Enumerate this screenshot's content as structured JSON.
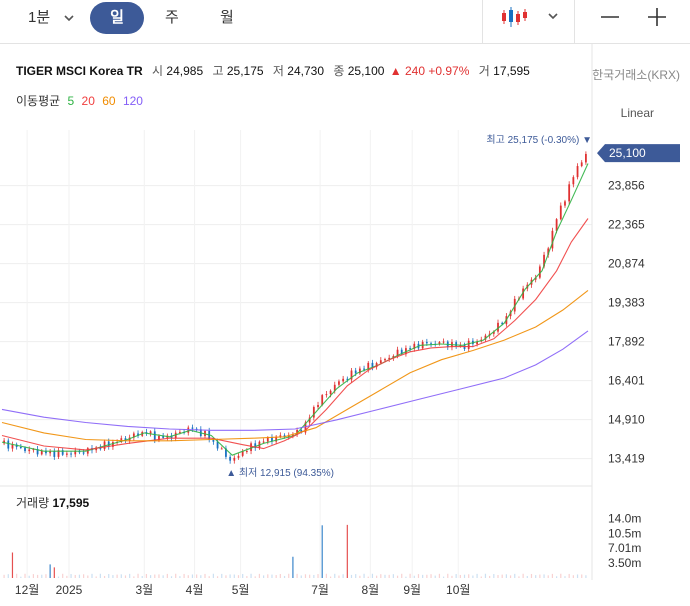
{
  "toolbar": {
    "period_label": "1분",
    "tabs": [
      "일",
      "주",
      "월"
    ],
    "active_tab": 0
  },
  "info": {
    "name": "TIGER MSCI Korea TR",
    "open_label": "시",
    "open": "24,985",
    "high_label": "고",
    "high": "25,175",
    "low_label": "저",
    "low": "24,730",
    "close_label": "종",
    "close": "25,100",
    "change": "▲ 240",
    "change_pct": "+0.97%",
    "volume_label": "거",
    "volume": "17,595",
    "exchange": "한국거래소(KRX)"
  },
  "ma_legend": {
    "title": "이동평균",
    "items": [
      {
        "label": "5",
        "color": "#2fb344"
      },
      {
        "label": "20",
        "color": "#f03e3e"
      },
      {
        "label": "60",
        "color": "#f08c00"
      },
      {
        "label": "120",
        "color": "#845ef7"
      }
    ]
  },
  "scale_mode": "Linear",
  "volume_panel": {
    "title": "거래량",
    "value": "17,595"
  },
  "colors": {
    "up": "#e03131",
    "down": "#1971c2",
    "accent": "#3d5a98"
  },
  "chart_data": {
    "type": "candlestick",
    "title": "TIGER MSCI Korea TR",
    "y_ticks": [
      "13,419",
      "14,910",
      "16,401",
      "17,892",
      "19,383",
      "20,874",
      "22,365",
      "23,856"
    ],
    "y_range": [
      12600,
      25600
    ],
    "current_price": "25,100",
    "max_annotation": "최고 25,175 (-0.30%) ▼",
    "min_annotation": "▲ 최저 12,915 (94.35%)",
    "x_ticks": [
      "12월",
      "2025",
      "3월",
      "4월",
      "5월",
      "7월",
      "8월",
      "9월",
      "10월"
    ],
    "volume_ticks": [
      "14.0m",
      "10.5m",
      "7.01m",
      "3.50m"
    ],
    "volume_range": [
      0,
      16000000
    ],
    "series": [
      {
        "name": "price_close_approx",
        "points": [
          [
            0,
            14000
          ],
          [
            5,
            13900
          ],
          [
            12,
            13750
          ],
          [
            20,
            13650
          ],
          [
            30,
            13600
          ],
          [
            40,
            13700
          ],
          [
            50,
            13950
          ],
          [
            60,
            14200
          ],
          [
            68,
            14450
          ],
          [
            75,
            14200
          ],
          [
            82,
            14300
          ],
          [
            90,
            14600
          ],
          [
            98,
            14300
          ],
          [
            105,
            13700
          ],
          [
            110,
            13300
          ],
          [
            115,
            13700
          ],
          [
            125,
            14100
          ],
          [
            135,
            14300
          ],
          [
            140,
            14350
          ],
          [
            145,
            14700
          ],
          [
            150,
            15500
          ],
          [
            160,
            16300
          ],
          [
            170,
            16800
          ],
          [
            180,
            17100
          ],
          [
            190,
            17500
          ],
          [
            200,
            17800
          ],
          [
            210,
            17850
          ],
          [
            220,
            17700
          ],
          [
            230,
            18000
          ],
          [
            240,
            18700
          ],
          [
            248,
            19800
          ],
          [
            255,
            20400
          ],
          [
            260,
            21300
          ],
          [
            265,
            22600
          ],
          [
            270,
            23600
          ],
          [
            275,
            24600
          ],
          [
            280,
            25100
          ]
        ]
      },
      {
        "name": "MA5",
        "points": [
          [
            0,
            14050
          ],
          [
            20,
            13700
          ],
          [
            40,
            13700
          ],
          [
            60,
            14150
          ],
          [
            68,
            14400
          ],
          [
            80,
            14250
          ],
          [
            90,
            14500
          ],
          [
            100,
            14300
          ],
          [
            110,
            13550
          ],
          [
            125,
            14000
          ],
          [
            140,
            14300
          ],
          [
            150,
            15200
          ],
          [
            160,
            16100
          ],
          [
            170,
            16700
          ],
          [
            180,
            17000
          ],
          [
            190,
            17400
          ],
          [
            200,
            17750
          ],
          [
            210,
            17800
          ],
          [
            220,
            17750
          ],
          [
            230,
            17950
          ],
          [
            240,
            18600
          ],
          [
            250,
            19900
          ],
          [
            258,
            20600
          ],
          [
            265,
            22100
          ],
          [
            272,
            23300
          ],
          [
            280,
            24700
          ]
        ]
      },
      {
        "name": "MA20",
        "points": [
          [
            0,
            14300
          ],
          [
            20,
            13900
          ],
          [
            40,
            13750
          ],
          [
            60,
            14000
          ],
          [
            80,
            14200
          ],
          [
            100,
            14200
          ],
          [
            115,
            13950
          ],
          [
            125,
            13800
          ],
          [
            135,
            14100
          ],
          [
            145,
            14500
          ],
          [
            155,
            15300
          ],
          [
            165,
            16200
          ],
          [
            175,
            16800
          ],
          [
            185,
            17200
          ],
          [
            195,
            17500
          ],
          [
            205,
            17650
          ],
          [
            215,
            17700
          ],
          [
            225,
            17700
          ],
          [
            235,
            18000
          ],
          [
            245,
            18700
          ],
          [
            255,
            19500
          ],
          [
            265,
            20600
          ],
          [
            272,
            21700
          ],
          [
            280,
            22600
          ]
        ]
      },
      {
        "name": "MA60",
        "points": [
          [
            0,
            14800
          ],
          [
            20,
            14400
          ],
          [
            40,
            14150
          ],
          [
            60,
            14100
          ],
          [
            80,
            14100
          ],
          [
            100,
            14150
          ],
          [
            120,
            14200
          ],
          [
            135,
            14250
          ],
          [
            150,
            14600
          ],
          [
            165,
            15300
          ],
          [
            180,
            16000
          ],
          [
            195,
            16700
          ],
          [
            210,
            17200
          ],
          [
            225,
            17550
          ],
          [
            240,
            17950
          ],
          [
            255,
            18450
          ],
          [
            268,
            19100
          ],
          [
            280,
            19850
          ]
        ]
      },
      {
        "name": "MA120",
        "points": [
          [
            0,
            15300
          ],
          [
            20,
            15000
          ],
          [
            40,
            14800
          ],
          [
            60,
            14650
          ],
          [
            80,
            14550
          ],
          [
            100,
            14500
          ],
          [
            120,
            14500
          ],
          [
            140,
            14550
          ],
          [
            160,
            14900
          ],
          [
            180,
            15300
          ],
          [
            200,
            15700
          ],
          [
            220,
            16100
          ],
          [
            240,
            16500
          ],
          [
            255,
            17000
          ],
          [
            268,
            17600
          ],
          [
            280,
            18300
          ]
        ]
      }
    ]
  }
}
